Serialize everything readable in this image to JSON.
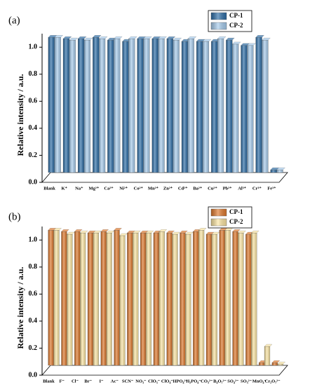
{
  "chart_data": [
    {
      "type": "bar",
      "panel_label": "(a)",
      "ylabel": "Relative intensity / a.u.",
      "categories": [
        "Blank",
        "K⁺",
        "Na⁺",
        "Mg²⁺",
        "Ca²⁺",
        "Ni²⁺",
        "Co²⁺",
        "Mn²⁺",
        "Zn²⁺",
        "Cd²⁺",
        "Ba²⁺",
        "Cu²⁺",
        "Pb²⁺",
        "Al³⁺",
        "Cr³⁺",
        "Fe³⁺"
      ],
      "series": [
        {
          "name": "CP-1",
          "color": "#2f6fa8",
          "values": [
            1.0,
            0.99,
            0.99,
            1.0,
            0.98,
            0.97,
            0.99,
            0.99,
            0.99,
            0.97,
            0.97,
            0.97,
            0.98,
            0.94,
            1.0,
            0.02
          ]
        },
        {
          "name": "CP-2",
          "color": "#a8cdee",
          "values": [
            1.0,
            0.98,
            0.98,
            0.99,
            0.99,
            0.99,
            0.99,
            0.99,
            0.98,
            0.99,
            0.97,
            0.99,
            0.95,
            0.94,
            0.98,
            0.02
          ]
        }
      ],
      "ylim": [
        0,
        1.1
      ],
      "yticks": [
        {
          "value": 0,
          "label": "0.0"
        },
        0.2,
        0.4,
        0.6,
        0.8,
        {
          "value": 1,
          "label": "1.0"
        }
      ],
      "legend": "upper right"
    },
    {
      "type": "bar",
      "panel_label": "(b)",
      "ylabel": "Relative intensity / a.u.",
      "categories": [
        "Blank",
        "F⁻",
        "Cl⁻",
        "Br⁻",
        "I⁻",
        "Ac⁻",
        "SCN⁻",
        "NO₃⁻",
        "ClO₃⁻",
        "ClO₄⁻",
        "HPO₄²⁻",
        "H₂PO₄⁻",
        "CO₃²⁻",
        "B₄O₇²⁻",
        "SO₄²⁻",
        "SO₃²⁻",
        "MnO₄⁻",
        "Cr₂O₇²⁻"
      ],
      "series": [
        {
          "name": "CP-1",
          "color": "#e07a2e",
          "values": [
            1.0,
            0.99,
            0.99,
            0.98,
            0.99,
            1.0,
            0.98,
            0.98,
            0.98,
            0.98,
            0.98,
            0.99,
            0.97,
            1.0,
            0.99,
            0.97,
            0.02,
            0.02
          ]
        },
        {
          "name": "CP-2",
          "color": "#fde7a4",
          "values": [
            1.0,
            0.97,
            0.98,
            0.98,
            0.98,
            0.96,
            0.98,
            0.98,
            0.99,
            0.97,
            0.97,
            1.0,
            0.97,
            1.0,
            0.98,
            0.98,
            0.14,
            0.01
          ]
        }
      ],
      "ylim": [
        0,
        1.1
      ],
      "yticks": [
        {
          "value": 0,
          "label": "0.0"
        },
        0.2,
        0.4,
        0.6,
        0.8,
        {
          "value": 1,
          "label": "1.0"
        }
      ],
      "legend": "upper right"
    }
  ]
}
